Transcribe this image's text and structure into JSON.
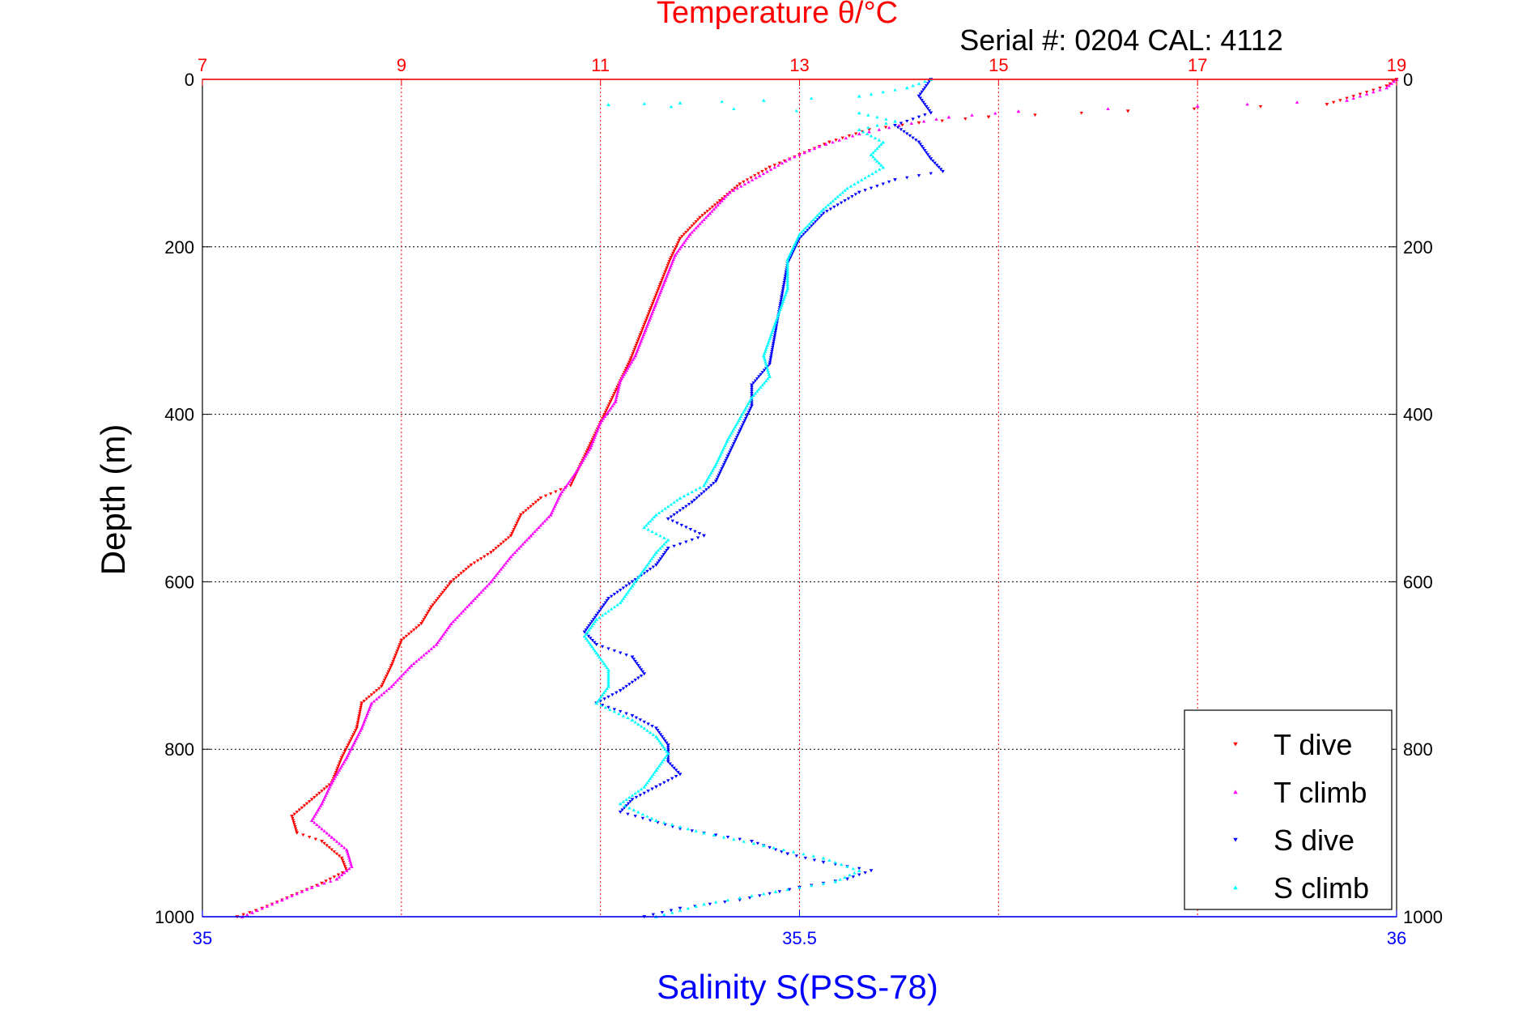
{
  "colors": {
    "temperature_axis": "#ff0000",
    "salinity_axis": "#0000ff",
    "t_dive": "#ff0000",
    "t_climb": "#ff00ff",
    "s_dive": "#0000ff",
    "s_climb": "#00ffff",
    "grid_depth": "#000000",
    "grid_temp": "#ff0000",
    "text": "#000000"
  },
  "chart_data": {
    "type": "scatter",
    "title": "Temperature θ/°C",
    "subtitle": "Serial #: 0204  CAL: 4112",
    "ylabel": "Depth (m)",
    "xlabel": "Salinity S(PSS-78)",
    "ylim": [
      0,
      1000
    ],
    "y_reversed": true,
    "temperature_axis": {
      "range": [
        7,
        19
      ],
      "ticks": [
        "7",
        "9",
        "11",
        "13",
        "15",
        "17",
        "19"
      ],
      "position": "top"
    },
    "salinity_axis": {
      "range": [
        35,
        36
      ],
      "ticks": [
        "35",
        "35.5",
        "36"
      ],
      "position": "bottom"
    },
    "depth_ticks": [
      "0",
      "200",
      "400",
      "600",
      "800",
      "1000"
    ],
    "grid": true,
    "legend_position": "bottom-right",
    "series": [
      {
        "name": "T dive",
        "axis": "temperature",
        "marker": "triangle-down",
        "points": [
          [
            19.0,
            0
          ],
          [
            18.9,
            8
          ],
          [
            18.3,
            30
          ],
          [
            16.3,
            38
          ],
          [
            14.9,
            45
          ],
          [
            14.2,
            52
          ],
          [
            13.7,
            60
          ],
          [
            13.3,
            75
          ],
          [
            13.0,
            90
          ],
          [
            12.7,
            105
          ],
          [
            12.4,
            125
          ],
          [
            12.2,
            145
          ],
          [
            12.0,
            165
          ],
          [
            11.8,
            190
          ],
          [
            11.7,
            215
          ],
          [
            11.6,
            245
          ],
          [
            11.5,
            275
          ],
          [
            11.4,
            305
          ],
          [
            11.3,
            335
          ],
          [
            11.2,
            360
          ],
          [
            11.1,
            385
          ],
          [
            11.0,
            410
          ],
          [
            10.9,
            435
          ],
          [
            10.8,
            460
          ],
          [
            10.7,
            485
          ],
          [
            10.4,
            500
          ],
          [
            10.2,
            520
          ],
          [
            10.1,
            545
          ],
          [
            9.9,
            565
          ],
          [
            9.7,
            580
          ],
          [
            9.5,
            600
          ],
          [
            9.3,
            630
          ],
          [
            9.2,
            650
          ],
          [
            9.0,
            670
          ],
          [
            8.9,
            700
          ],
          [
            8.8,
            725
          ],
          [
            8.6,
            745
          ],
          [
            8.55,
            775
          ],
          [
            8.4,
            810
          ],
          [
            8.3,
            840
          ],
          [
            8.1,
            860
          ],
          [
            7.9,
            880
          ],
          [
            7.95,
            900
          ],
          [
            8.2,
            910
          ],
          [
            8.4,
            930
          ],
          [
            8.45,
            945
          ],
          [
            8.2,
            960
          ],
          [
            7.9,
            975
          ],
          [
            7.6,
            990
          ],
          [
            7.35,
            1000
          ]
        ]
      },
      {
        "name": "T climb",
        "axis": "temperature",
        "marker": "triangle-up",
        "points": [
          [
            19.0,
            0
          ],
          [
            18.9,
            10
          ],
          [
            18.5,
            25
          ],
          [
            17.0,
            32
          ],
          [
            15.2,
            38
          ],
          [
            14.5,
            45
          ],
          [
            14.0,
            55
          ],
          [
            13.6,
            65
          ],
          [
            13.2,
            80
          ],
          [
            12.9,
            95
          ],
          [
            12.6,
            115
          ],
          [
            12.3,
            135
          ],
          [
            12.1,
            160
          ],
          [
            11.9,
            185
          ],
          [
            11.75,
            210
          ],
          [
            11.65,
            240
          ],
          [
            11.55,
            270
          ],
          [
            11.45,
            300
          ],
          [
            11.35,
            330
          ],
          [
            11.2,
            360
          ],
          [
            11.15,
            385
          ],
          [
            11.0,
            410
          ],
          [
            10.9,
            440
          ],
          [
            10.75,
            470
          ],
          [
            10.6,
            495
          ],
          [
            10.5,
            520
          ],
          [
            10.3,
            545
          ],
          [
            10.1,
            570
          ],
          [
            9.9,
            600
          ],
          [
            9.7,
            625
          ],
          [
            9.5,
            650
          ],
          [
            9.35,
            675
          ],
          [
            9.1,
            700
          ],
          [
            8.9,
            725
          ],
          [
            8.7,
            745
          ],
          [
            8.6,
            775
          ],
          [
            8.45,
            810
          ],
          [
            8.3,
            840
          ],
          [
            8.2,
            865
          ],
          [
            8.1,
            885
          ],
          [
            8.3,
            905
          ],
          [
            8.45,
            920
          ],
          [
            8.5,
            940
          ],
          [
            8.35,
            955
          ],
          [
            8.1,
            965
          ],
          [
            7.8,
            980
          ],
          [
            7.5,
            995
          ],
          [
            7.4,
            1000
          ]
        ]
      },
      {
        "name": "S dive",
        "axis": "salinity",
        "marker": "triangle-down",
        "points": [
          [
            35.61,
            0
          ],
          [
            35.6,
            20
          ],
          [
            35.61,
            40
          ],
          [
            35.58,
            55
          ],
          [
            35.6,
            75
          ],
          [
            35.61,
            95
          ],
          [
            35.62,
            110
          ],
          [
            35.58,
            120
          ],
          [
            35.55,
            135
          ],
          [
            35.52,
            160
          ],
          [
            35.5,
            190
          ],
          [
            35.49,
            220
          ],
          [
            35.485,
            260
          ],
          [
            35.48,
            300
          ],
          [
            35.475,
            340
          ],
          [
            35.46,
            365
          ],
          [
            35.46,
            390
          ],
          [
            35.45,
            420
          ],
          [
            35.44,
            450
          ],
          [
            35.43,
            480
          ],
          [
            35.41,
            505
          ],
          [
            35.39,
            525
          ],
          [
            35.42,
            545
          ],
          [
            35.39,
            560
          ],
          [
            35.38,
            580
          ],
          [
            35.36,
            600
          ],
          [
            35.34,
            620
          ],
          [
            35.33,
            640
          ],
          [
            35.32,
            660
          ],
          [
            35.33,
            675
          ],
          [
            35.36,
            690
          ],
          [
            35.37,
            710
          ],
          [
            35.35,
            730
          ],
          [
            35.33,
            745
          ],
          [
            35.36,
            760
          ],
          [
            35.38,
            775
          ],
          [
            35.39,
            795
          ],
          [
            35.39,
            815
          ],
          [
            35.4,
            830
          ],
          [
            35.38,
            845
          ],
          [
            35.36,
            860
          ],
          [
            35.35,
            875
          ],
          [
            35.4,
            895
          ],
          [
            35.46,
            910
          ],
          [
            35.49,
            925
          ],
          [
            35.52,
            935
          ],
          [
            35.56,
            945
          ],
          [
            35.54,
            955
          ],
          [
            35.5,
            965
          ],
          [
            35.45,
            980
          ],
          [
            35.4,
            990
          ],
          [
            35.37,
            1000
          ]
        ]
      },
      {
        "name": "S climb",
        "axis": "salinity",
        "marker": "triangle-up",
        "points": [
          [
            35.61,
            0
          ],
          [
            35.59,
            10
          ],
          [
            35.55,
            20
          ],
          [
            35.47,
            25
          ],
          [
            35.4,
            28
          ],
          [
            35.34,
            30
          ],
          [
            35.55,
            40
          ],
          [
            35.58,
            50
          ],
          [
            35.55,
            60
          ],
          [
            35.57,
            75
          ],
          [
            35.56,
            90
          ],
          [
            35.57,
            105
          ],
          [
            35.54,
            130
          ],
          [
            35.52,
            155
          ],
          [
            35.5,
            185
          ],
          [
            35.49,
            215
          ],
          [
            35.49,
            250
          ],
          [
            35.48,
            290
          ],
          [
            35.47,
            330
          ],
          [
            35.475,
            355
          ],
          [
            35.46,
            380
          ],
          [
            35.45,
            405
          ],
          [
            35.44,
            430
          ],
          [
            35.43,
            460
          ],
          [
            35.42,
            485
          ],
          [
            35.4,
            500
          ],
          [
            35.38,
            520
          ],
          [
            35.37,
            535
          ],
          [
            35.39,
            550
          ],
          [
            35.38,
            565
          ],
          [
            35.37,
            585
          ],
          [
            35.36,
            605
          ],
          [
            35.35,
            625
          ],
          [
            35.33,
            645
          ],
          [
            35.32,
            665
          ],
          [
            35.33,
            685
          ],
          [
            35.34,
            705
          ],
          [
            35.34,
            725
          ],
          [
            35.33,
            745
          ],
          [
            35.36,
            765
          ],
          [
            35.38,
            785
          ],
          [
            35.39,
            805
          ],
          [
            35.38,
            825
          ],
          [
            35.37,
            845
          ],
          [
            35.35,
            865
          ],
          [
            35.38,
            885
          ],
          [
            35.42,
            900
          ],
          [
            35.47,
            915
          ],
          [
            35.52,
            930
          ],
          [
            35.55,
            945
          ],
          [
            35.53,
            958
          ],
          [
            35.48,
            970
          ],
          [
            35.42,
            985
          ],
          [
            35.38,
            1000
          ]
        ]
      }
    ]
  }
}
